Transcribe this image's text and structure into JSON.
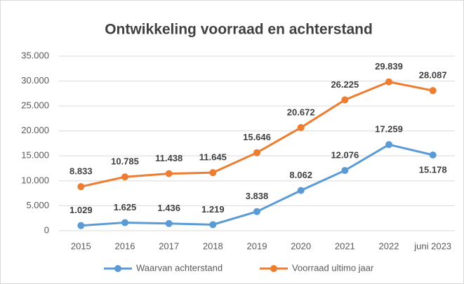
{
  "chart_data": {
    "type": "line",
    "title": "Ontwikkeling voorraad en achterstand",
    "categories": [
      "2015",
      "2016",
      "2017",
      "2018",
      "2019",
      "2020",
      "2021",
      "2022",
      "juni 2023"
    ],
    "series": [
      {
        "name": "Waarvan achterstand",
        "color": "#5b9bd5",
        "values": [
          1029,
          1625,
          1436,
          1219,
          3838,
          8062,
          12076,
          17259,
          15178
        ],
        "value_labels": [
          "1.029",
          "1.625",
          "1.436",
          "1.219",
          "3.838",
          "8.062",
          "12.076",
          "17.259",
          "15.178"
        ]
      },
      {
        "name": "Voorraad ultimo jaar",
        "color": "#ed7d31",
        "values": [
          8833,
          10785,
          11438,
          11645,
          15646,
          20672,
          26225,
          29839,
          28087
        ],
        "value_labels": [
          "8.833",
          "10.785",
          "11.438",
          "11.645",
          "15.646",
          "20.672",
          "26.225",
          "29.839",
          "28.087"
        ]
      }
    ],
    "ylim": [
      0,
      35000
    ],
    "yticks": [
      0,
      {
        "value": 5000,
        "label": "5.000"
      },
      {
        "value": 10000,
        "label": "10.000"
      },
      {
        "value": 15000,
        "label": "15.000"
      },
      {
        "value": 20000,
        "label": "20.000"
      },
      {
        "value": 25000,
        "label": "25.000"
      },
      {
        "value": 30000,
        "label": "30.000"
      },
      {
        "value": 35000,
        "label": "35.000"
      }
    ],
    "grid": true,
    "legend": "bottom"
  }
}
